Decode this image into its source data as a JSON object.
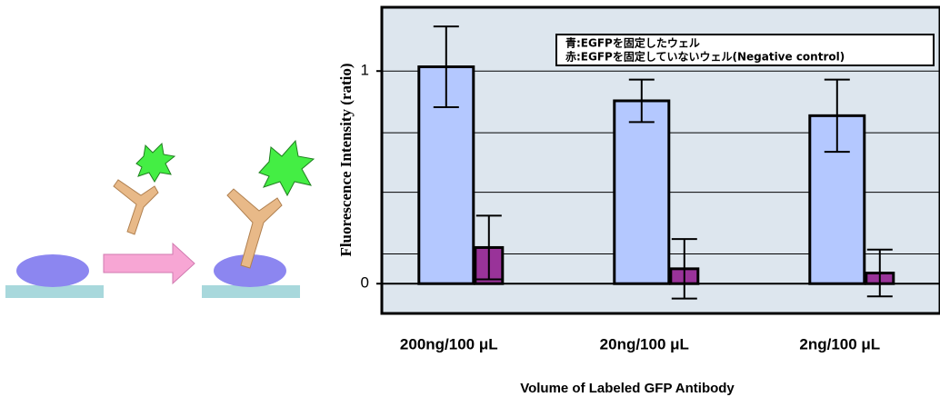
{
  "chart_data": {
    "type": "bar",
    "x_label": "Volume of Labeled GFP Antibody",
    "y_label": "Fluorescence Intensity (ratio)",
    "categories": [
      "200ng/100 μL",
      "20ng/100 μL",
      "2ng/100 μL"
    ],
    "series": [
      {
        "name": "青:EGFPを固定したウェル",
        "color": "#b4c8ff",
        "values": [
          1.02,
          0.86,
          0.79
        ],
        "errors": [
          0.19,
          0.1,
          0.17
        ]
      },
      {
        "name": "赤:EGFPを固定していないウェル(Negative control)",
        "color": "#993399",
        "values": [
          0.17,
          0.07,
          0.05
        ],
        "errors": [
          0.15,
          0.14,
          0.11
        ]
      }
    ],
    "ylim": [
      -0.14,
      1.3
    ],
    "yticks": [
      0,
      1
    ],
    "y_gridlines": [
      0.14,
      0.43,
      0.71,
      1
    ],
    "legend": "upper right"
  }
}
